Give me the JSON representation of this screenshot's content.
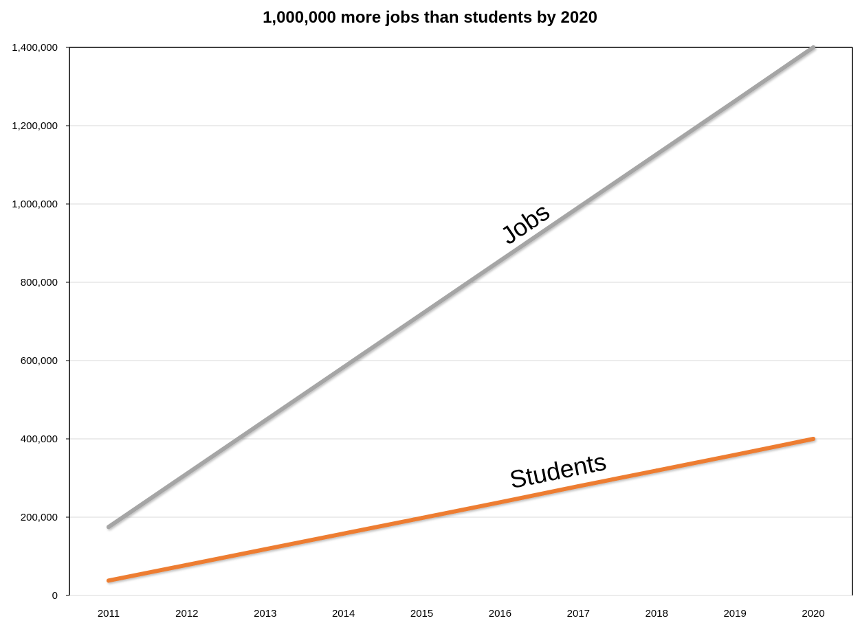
{
  "chart_data": {
    "type": "line",
    "title": "1,000,000 more jobs than students by 2020",
    "xlabel": "",
    "ylabel": "",
    "x": [
      "2011",
      "2012",
      "2013",
      "2014",
      "2015",
      "2016",
      "2017",
      "2018",
      "2019",
      "2020"
    ],
    "ylim": [
      0,
      1400000
    ],
    "yticks": [
      0,
      200000,
      400000,
      600000,
      800000,
      1000000,
      1200000,
      1400000
    ],
    "ytick_labels": [
      "0",
      "200,000",
      "400,000",
      "600,000",
      "800,000",
      "1,000,000",
      "1,200,000",
      "1,400,000"
    ],
    "grid": "horizontal",
    "legend": "none",
    "series": [
      {
        "name": "Jobs",
        "color": "#a5a5a5",
        "values": [
          175000,
          311000,
          447000,
          583000,
          719000,
          855000,
          991000,
          1127000,
          1263000,
          1400000
        ]
      },
      {
        "name": "Students",
        "color": "#ed7d31",
        "values": [
          38000,
          78000,
          118000,
          158000,
          198000,
          238000,
          279000,
          319000,
          359000,
          400000
        ]
      }
    ]
  }
}
